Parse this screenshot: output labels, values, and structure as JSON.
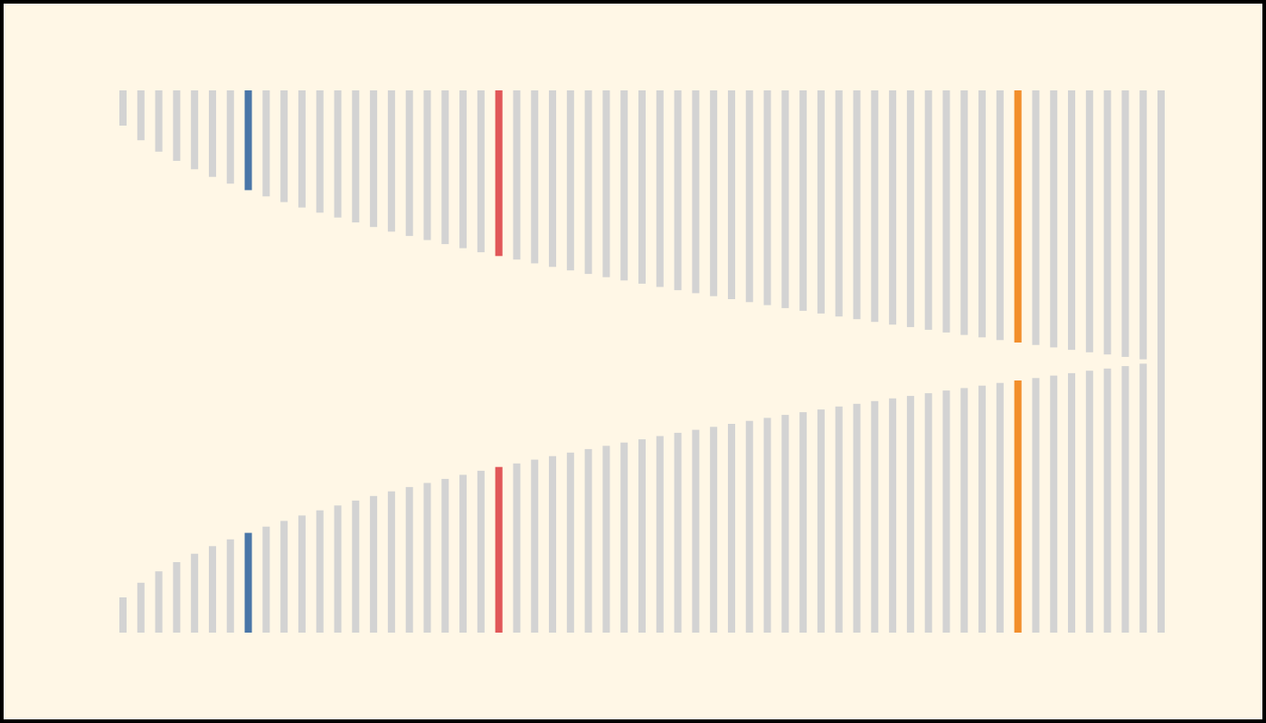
{
  "chart_data": {
    "type": "bar",
    "values": [
      0.13,
      0.184,
      0.226,
      0.26,
      0.291,
      0.319,
      0.344,
      0.368,
      0.391,
      0.412,
      0.432,
      0.451,
      0.469,
      0.487,
      0.504,
      0.521,
      0.537,
      0.552,
      0.567,
      0.582,
      0.597,
      0.611,
      0.624,
      0.638,
      0.651,
      0.664,
      0.677,
      0.689,
      0.701,
      0.713,
      0.725,
      0.737,
      0.748,
      0.759,
      0.77,
      0.781,
      0.792,
      0.803,
      0.813,
      0.823,
      0.834,
      0.844,
      0.854,
      0.864,
      0.873,
      0.883,
      0.893,
      0.902,
      0.911,
      0.921,
      0.93,
      0.939,
      0.948,
      0.957,
      0.966,
      0.974,
      0.983,
      0.992,
      1.0
    ],
    "color": "#d3d3d3",
    "highlights": [
      {
        "index": 7,
        "color": "#4a76a8"
      },
      {
        "index": 21,
        "color": "#e15759"
      },
      {
        "index": 50,
        "color": "#f28e2b"
      }
    ],
    "ylim": [
      0,
      1
    ]
  }
}
